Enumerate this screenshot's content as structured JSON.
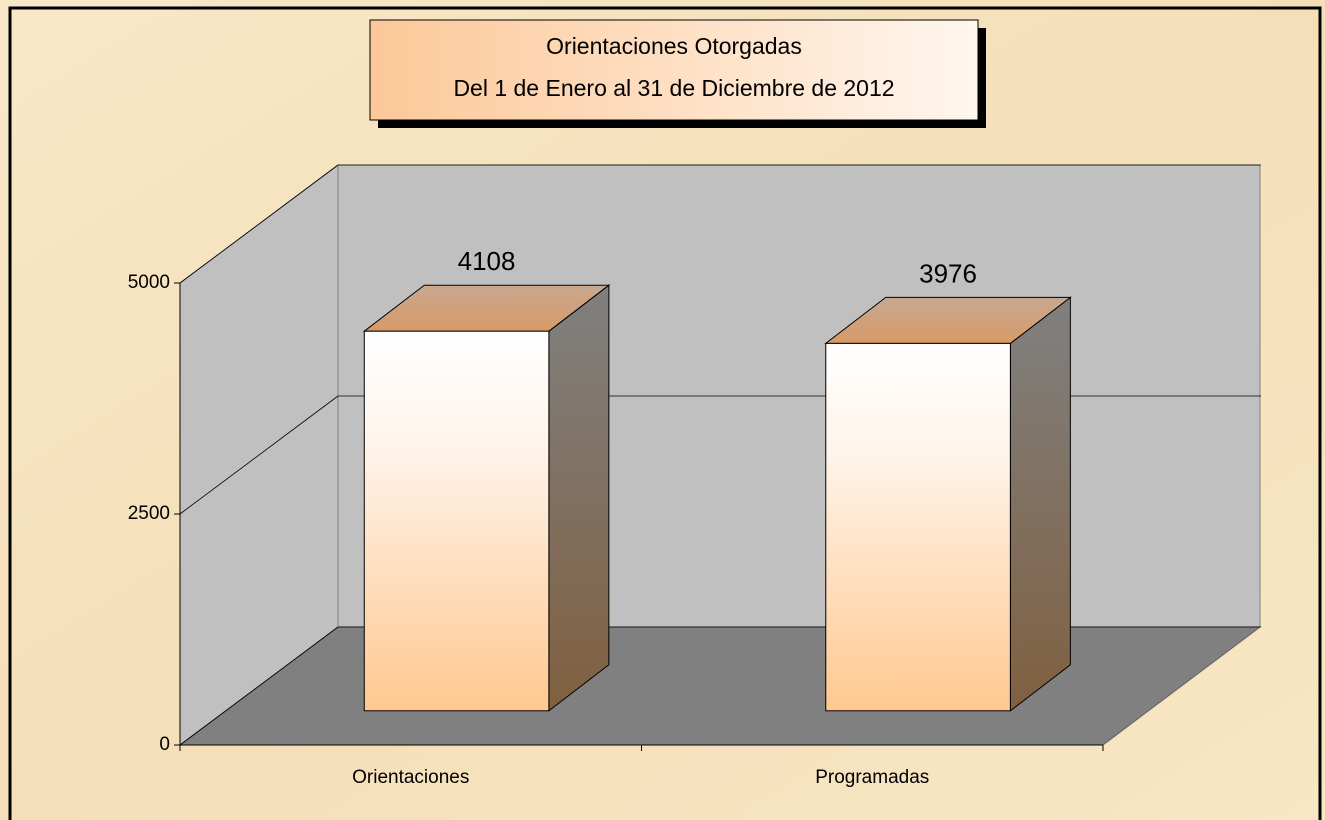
{
  "chart_data": {
    "type": "bar",
    "title": "Orientaciones Otorgadas",
    "subtitle": "Del 1 de Enero al 31 de Diciembre de 2012",
    "categories": [
      "Orientaciones",
      "Programadas"
    ],
    "values": [
      4108,
      3976
    ],
    "ylim": [
      0,
      5000
    ],
    "yticks": [
      0,
      2500,
      5000
    ],
    "grid": true,
    "color": "#ffc890"
  }
}
